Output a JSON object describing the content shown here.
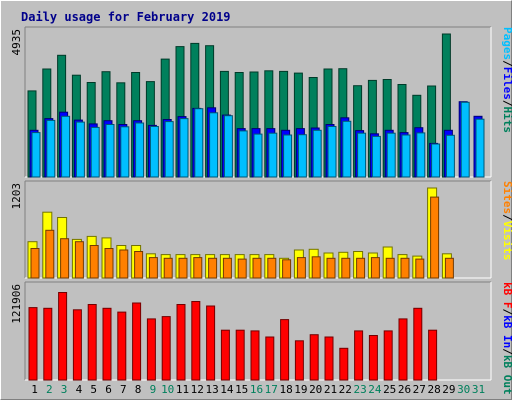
{
  "title": "Daily usage for February 2019",
  "colors": {
    "hits": "#00805c",
    "files": "#0000ff",
    "pages": "#00bfff",
    "visits": "#ffff00",
    "sites": "#ff8000",
    "kbytes": "#ff0000",
    "kb_in": "#0000ff",
    "kb_out": "#00805c",
    "weekday_label": "#000000",
    "weekend_label": "#00805c",
    "slash": "#000000"
  },
  "legends": {
    "top": [
      {
        "key": "pages",
        "text": "Pages"
      },
      {
        "key": "slash",
        "text": "/"
      },
      {
        "key": "files",
        "text": "Files"
      },
      {
        "key": "slash",
        "text": "/"
      },
      {
        "key": "hits",
        "text": "Hits"
      }
    ],
    "middle": [
      {
        "key": "sites",
        "text": "Sites"
      },
      {
        "key": "slash",
        "text": "/"
      },
      {
        "key": "visits",
        "text": "Visits"
      }
    ],
    "bottom": [
      {
        "key": "kbytes",
        "text": "kB F"
      },
      {
        "key": "slash",
        "text": "/"
      },
      {
        "key": "kb_in",
        "text": "kB In"
      },
      {
        "key": "slash",
        "text": "/"
      },
      {
        "key": "kb_out",
        "text": "kB Out"
      }
    ]
  },
  "chart_data": {
    "type": "bar",
    "title": "Daily usage for February 2019",
    "x": [
      1,
      2,
      3,
      4,
      5,
      6,
      7,
      8,
      9,
      10,
      11,
      12,
      13,
      14,
      15,
      16,
      17,
      18,
      19,
      20,
      21,
      22,
      23,
      24,
      25,
      26,
      27,
      28,
      29,
      30,
      31
    ],
    "weekend_days": [
      2,
      3,
      9,
      10,
      16,
      17,
      23,
      24,
      30,
      31
    ],
    "panels": [
      {
        "name": "hits-files-pages",
        "ymax_label": "4935",
        "ylim": [
          0,
          4935
        ],
        "series": [
          {
            "name": "Hits",
            "color_key": "hits",
            "values": [
              2950,
              3700,
              4170,
              3490,
              3240,
              3610,
              3230,
              3580,
              3270,
              4040,
              4470,
              4580,
              4500,
              3620,
              3580,
              3600,
              3640,
              3620,
              3560,
              3410,
              3700,
              3710,
              3130,
              3310,
              3340,
              3170,
              2800,
              3120,
              4900,
              null,
              null
            ]
          },
          {
            "name": "Files",
            "color_key": "files",
            "values": [
              1600,
              2000,
              2220,
              1950,
              1820,
              1930,
              1800,
              1930,
              1770,
              1970,
              2070,
              2350,
              2370,
              2120,
              1660,
              1660,
              1660,
              1600,
              1660,
              1680,
              1800,
              2030,
              1590,
              1480,
              1600,
              1520,
              1690,
              1150,
              1600,
              2580,
              2080
            ]
          },
          {
            "name": "Pages",
            "color_key": "pages",
            "values": [
              1520,
              1940,
              2080,
              1880,
              1700,
              1800,
              1720,
              1850,
              1730,
              1900,
              2000,
              2340,
              2200,
              2100,
              1580,
              1470,
              1500,
              1440,
              1450,
              1600,
              1730,
              1910,
              1500,
              1390,
              1500,
              1440,
              1510,
              1130,
              1430,
              2560,
              1980
            ]
          }
        ]
      },
      {
        "name": "visits-sites",
        "ymax_label": "1203",
        "ylim": [
          0,
          1203
        ],
        "series": [
          {
            "name": "Visits",
            "color_key": "visits",
            "values": [
              480,
              870,
              800,
              510,
              550,
              530,
              430,
              430,
              320,
              310,
              310,
              310,
              310,
              310,
              310,
              310,
              310,
              260,
              370,
              380,
              330,
              340,
              350,
              330,
              410,
              310,
              290,
              1190,
              320,
              null,
              null
            ]
          },
          {
            "name": "Sites",
            "color_key": "sites",
            "values": [
              390,
              630,
              520,
              480,
              430,
              390,
              370,
              350,
              270,
              260,
              260,
              270,
              260,
              260,
              250,
              260,
              260,
              240,
              270,
              280,
              260,
              260,
              260,
              270,
              260,
              260,
              250,
              1070,
              260,
              null,
              null
            ]
          }
        ]
      },
      {
        "name": "kbytes",
        "ymax_label": "121906",
        "ylim": [
          0,
          121906
        ],
        "series": [
          {
            "name": "kB F",
            "color_key": "kbytes",
            "values": [
              96000,
              95000,
              116000,
              93000,
              100000,
              95000,
              90000,
              102000,
              81000,
              84000,
              100000,
              104000,
              98000,
              66000,
              66000,
              65000,
              57000,
              80000,
              52000,
              60000,
              57000,
              42000,
              65000,
              59000,
              65000,
              81000,
              95000,
              66000,
              null,
              null,
              null
            ]
          }
        ]
      }
    ]
  }
}
